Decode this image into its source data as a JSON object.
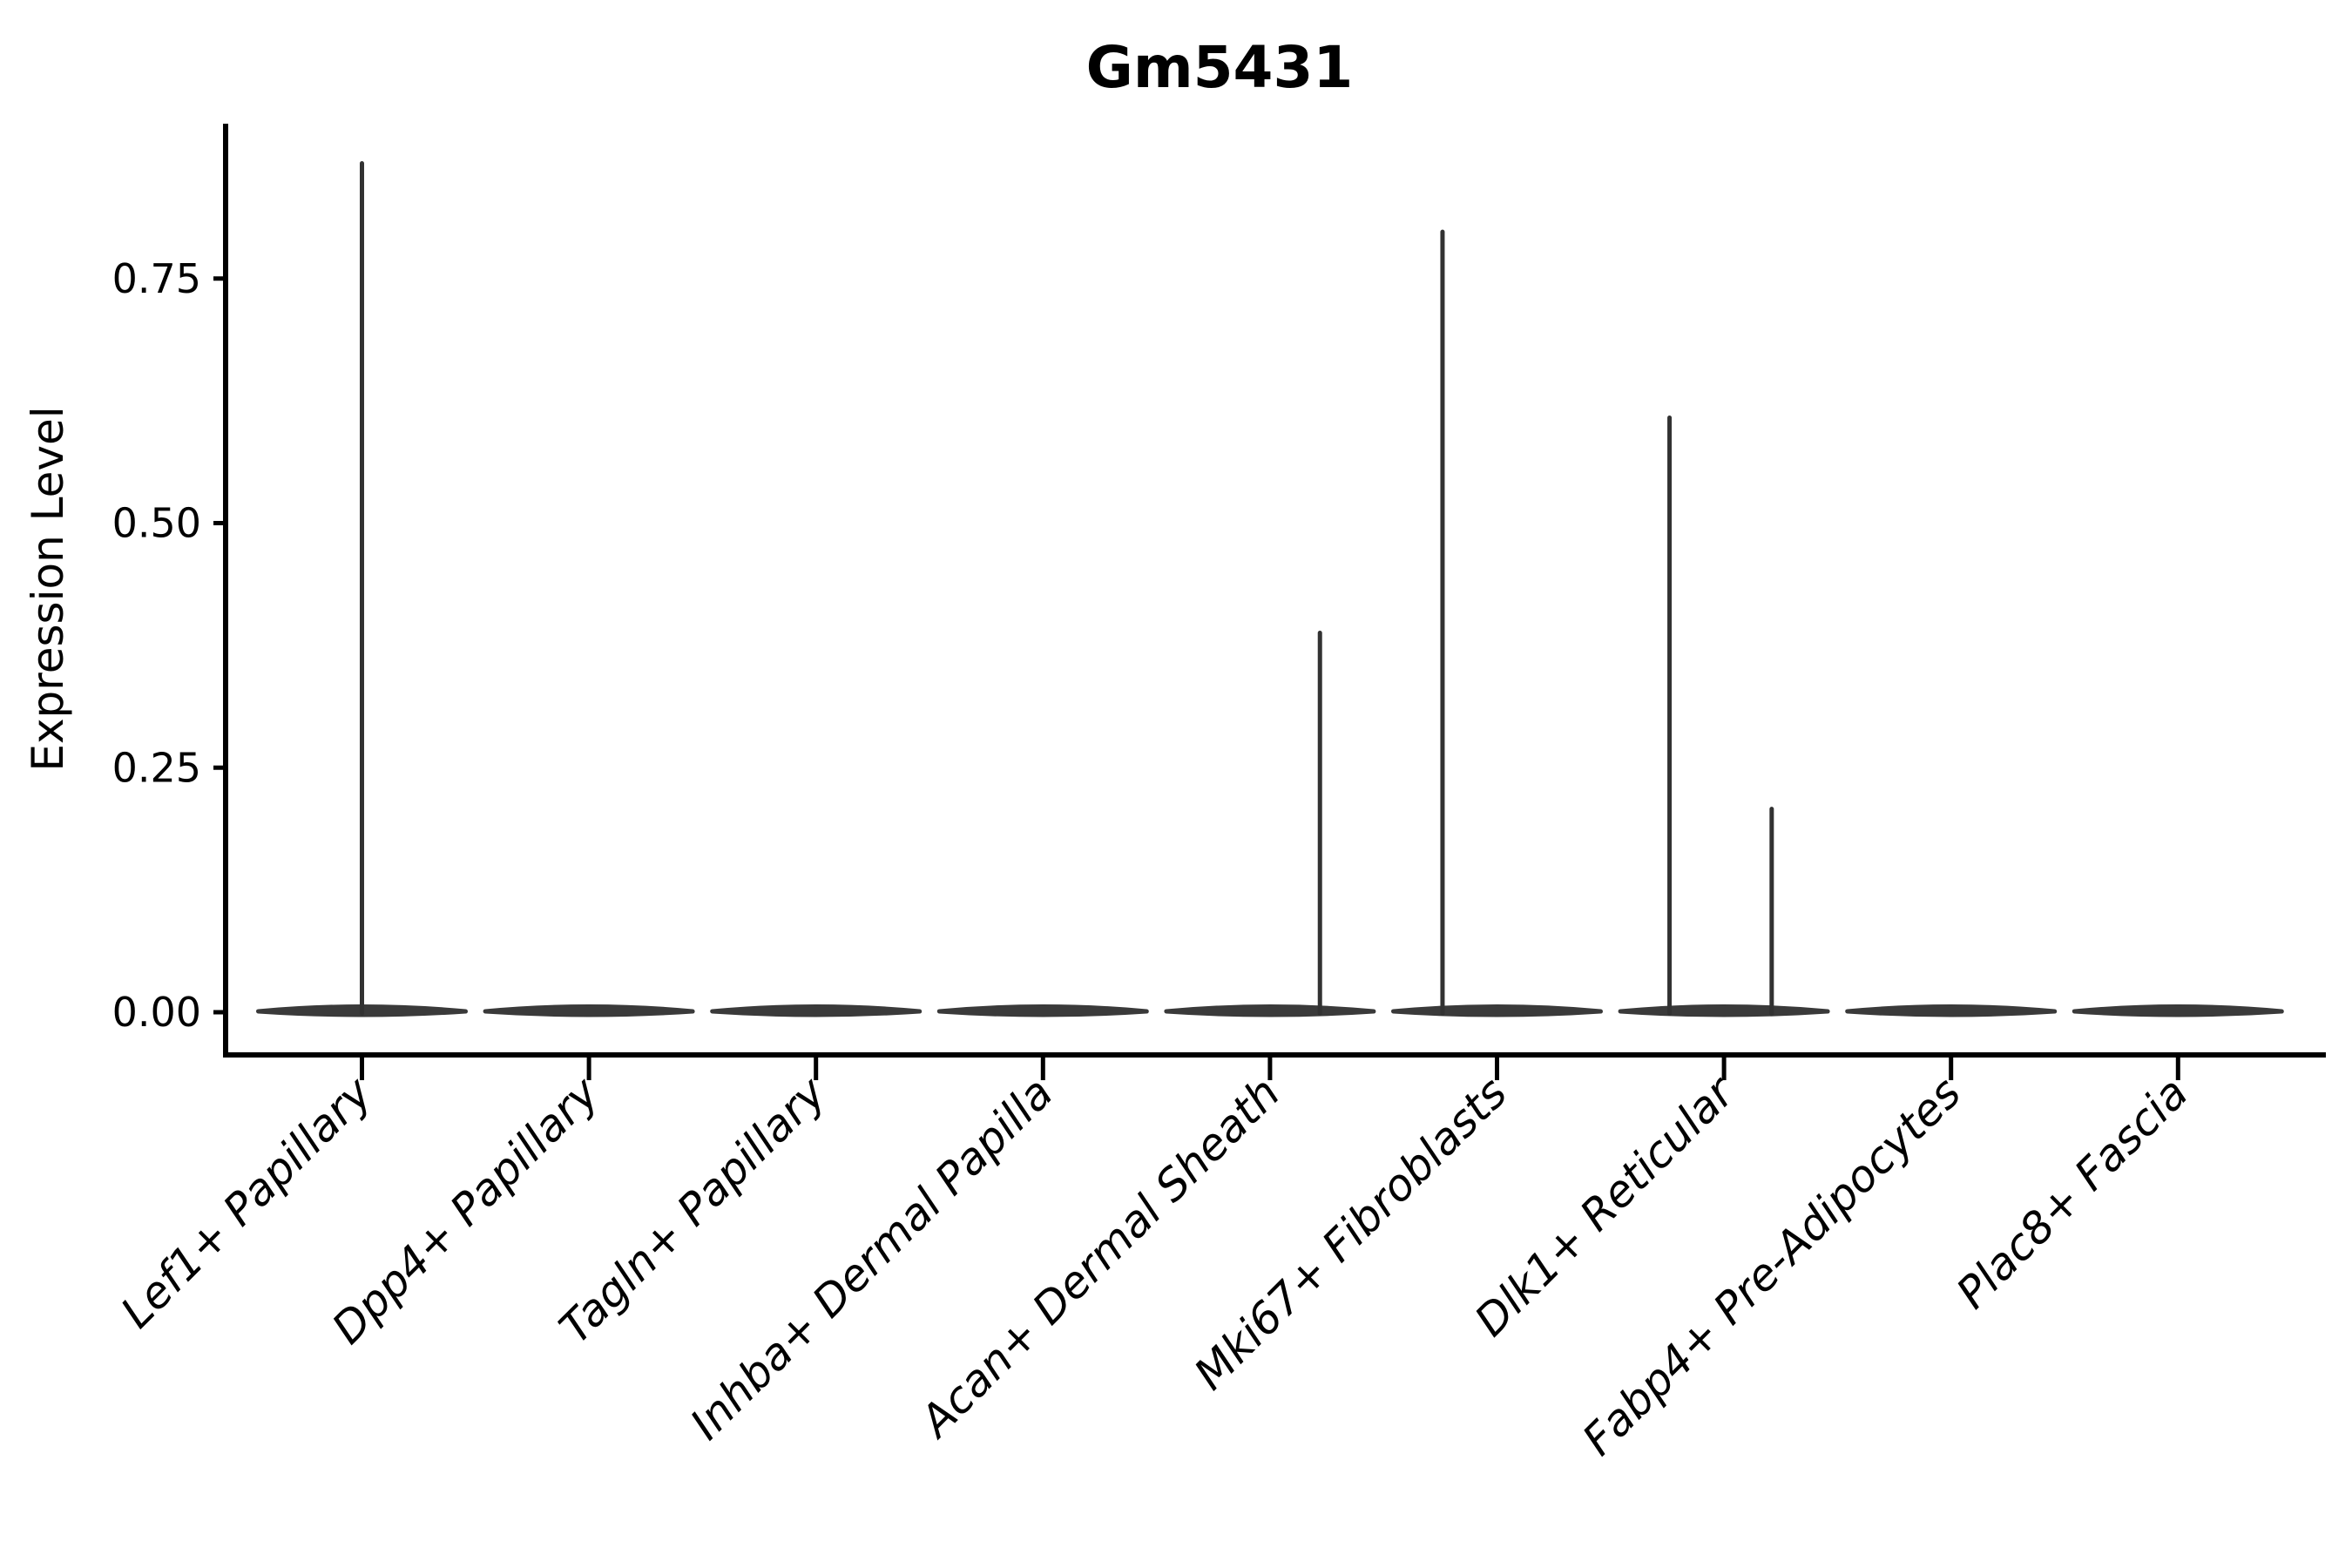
{
  "chart_data": {
    "type": "violin",
    "title": "Gm5431",
    "xlabel": "",
    "ylabel": "Expression Level",
    "ylim": [
      0,
      0.91
    ],
    "grid": false,
    "legend": null,
    "ytick_labels": [
      "0.00",
      "0.25",
      "0.50",
      "0.75"
    ],
    "ytick_values": [
      0.0,
      0.25,
      0.5,
      0.75
    ],
    "categories": [
      "Lef1+ Papillary",
      "Dpp4+ Papillary",
      "Tagln+ Papillary",
      "Inhba+ Dermal Papilla",
      "Acan+ Dermal Sheath",
      "Mki67+ Fibroblasts",
      "Dlk1+ Reticular",
      "Fabp4+ Pre-Adipocytes",
      "Plac8+ Fascia"
    ],
    "violins": [
      {
        "category": "Lef1+ Papillary",
        "baseline_value": 0,
        "max_value": 0.87,
        "spikes": [
          {
            "offset_frac": 0.0,
            "value": 0.87
          }
        ]
      },
      {
        "category": "Dpp4+ Papillary",
        "baseline_value": 0,
        "max_value": 0.0,
        "spikes": []
      },
      {
        "category": "Tagln+ Papillary",
        "baseline_value": 0,
        "max_value": 0.0,
        "spikes": []
      },
      {
        "category": "Inhba+ Dermal Papilla",
        "baseline_value": 0,
        "max_value": 0.0,
        "spikes": []
      },
      {
        "category": "Acan+ Dermal Sheath",
        "baseline_value": 0,
        "max_value": 0.39,
        "spikes": [
          {
            "offset_frac": 0.22,
            "value": 0.39
          }
        ]
      },
      {
        "category": "Mki67+ Fibroblasts",
        "baseline_value": 0,
        "max_value": 0.8,
        "spikes": [
          {
            "offset_frac": -0.24,
            "value": 0.8
          }
        ]
      },
      {
        "category": "Dlk1+ Reticular",
        "baseline_value": 0,
        "max_value": 0.61,
        "spikes": [
          {
            "offset_frac": -0.24,
            "value": 0.61
          },
          {
            "offset_frac": 0.21,
            "value": 0.21
          }
        ]
      },
      {
        "category": "Fabp4+ Pre-Adipocytes",
        "baseline_value": 0,
        "max_value": 0.0,
        "spikes": []
      },
      {
        "category": "Plac8+ Fascia",
        "baseline_value": 0,
        "max_value": 0.0,
        "spikes": []
      }
    ],
    "colors": {
      "violin": "#3a3a3a",
      "spike": "#323232",
      "axis": "#000000",
      "text": "#000000",
      "background": "#ffffff"
    }
  }
}
